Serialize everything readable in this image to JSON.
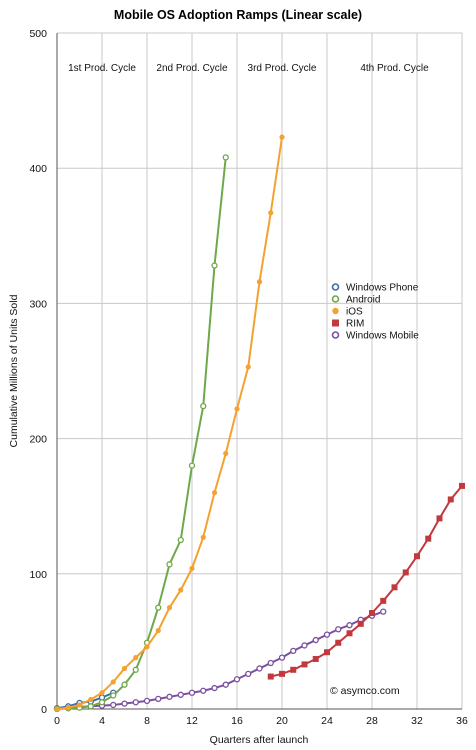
{
  "chart_data": {
    "type": "line",
    "title": "Mobile OS Adoption Ramps (Linear scale)",
    "xlabel": "Quarters after launch",
    "ylabel": "Cumulative Millions of Units Sold",
    "xlim": [
      0,
      36
    ],
    "ylim": [
      0,
      500
    ],
    "x_ticks": [
      0,
      4,
      8,
      12,
      16,
      20,
      24,
      28,
      32,
      36
    ],
    "y_ticks": [
      0,
      100,
      200,
      300,
      400,
      500
    ],
    "grid": true,
    "legend_position": "right",
    "cycles": [
      {
        "label": "1st Prod. Cycle",
        "start": 0,
        "end": 8
      },
      {
        "label": "2nd Prod. Cycle",
        "start": 8,
        "end": 16
      },
      {
        "label": "3rd Prod. Cycle",
        "start": 16,
        "end": 24
      },
      {
        "label": "4th Prod. Cycle",
        "start": 24,
        "end": 36
      }
    ],
    "series": [
      {
        "name": "Windows Phone",
        "color": "#3b6ea5",
        "marker": "circle",
        "x": [
          0,
          1,
          2,
          3,
          4,
          5
        ],
        "y": [
          0.5,
          2,
          4.5,
          5.5,
          8.5,
          12
        ]
      },
      {
        "name": "Android",
        "color": "#6fa84a",
        "marker": "circle",
        "x": [
          0,
          1,
          2,
          3,
          4,
          5,
          6,
          7,
          8,
          9,
          10,
          11,
          12,
          13,
          14,
          15
        ],
        "y": [
          0,
          0.5,
          1,
          2,
          5,
          10,
          18,
          29,
          49,
          75,
          107,
          125,
          180,
          224,
          328,
          408
        ]
      },
      {
        "name": "iOS",
        "color": "#f5a130",
        "marker": "dot",
        "x": [
          0,
          1,
          2,
          3,
          4,
          5,
          6,
          7,
          8,
          9,
          10,
          11,
          12,
          13,
          14,
          15,
          16,
          17,
          18,
          19,
          20
        ],
        "y": [
          0,
          1,
          3,
          7,
          12,
          20,
          30,
          38,
          46,
          58,
          75,
          88,
          104,
          127,
          160,
          189,
          222,
          253,
          316,
          367,
          423
        ]
      },
      {
        "name": "RIM",
        "color": "#c1393e",
        "marker": "square",
        "x": [
          19,
          20,
          21,
          22,
          23,
          24,
          25,
          26,
          27,
          28,
          29,
          30,
          31,
          32,
          33,
          34,
          35,
          36
        ],
        "y": [
          24,
          26,
          29,
          33,
          37,
          42,
          49,
          56,
          63,
          71,
          80,
          90,
          101,
          113,
          126,
          141,
          155,
          165
        ]
      },
      {
        "name": "Windows Mobile",
        "color": "#7b4fa0",
        "marker": "circle",
        "x": [
          0,
          1,
          2,
          3,
          4,
          5,
          6,
          7,
          8,
          9,
          10,
          11,
          12,
          13,
          14,
          15,
          16,
          17,
          18,
          19,
          20,
          21,
          22,
          23,
          24,
          25,
          26,
          27,
          28,
          29
        ],
        "y": [
          0.5,
          1,
          1.5,
          2,
          2.5,
          3,
          4,
          5,
          6,
          7.5,
          9,
          10.5,
          12,
          13.5,
          15.5,
          18,
          22,
          26,
          30,
          34,
          38,
          43,
          47,
          51,
          55,
          59,
          62,
          66,
          69,
          72
        ]
      }
    ],
    "annotation": "© asymco.com"
  }
}
